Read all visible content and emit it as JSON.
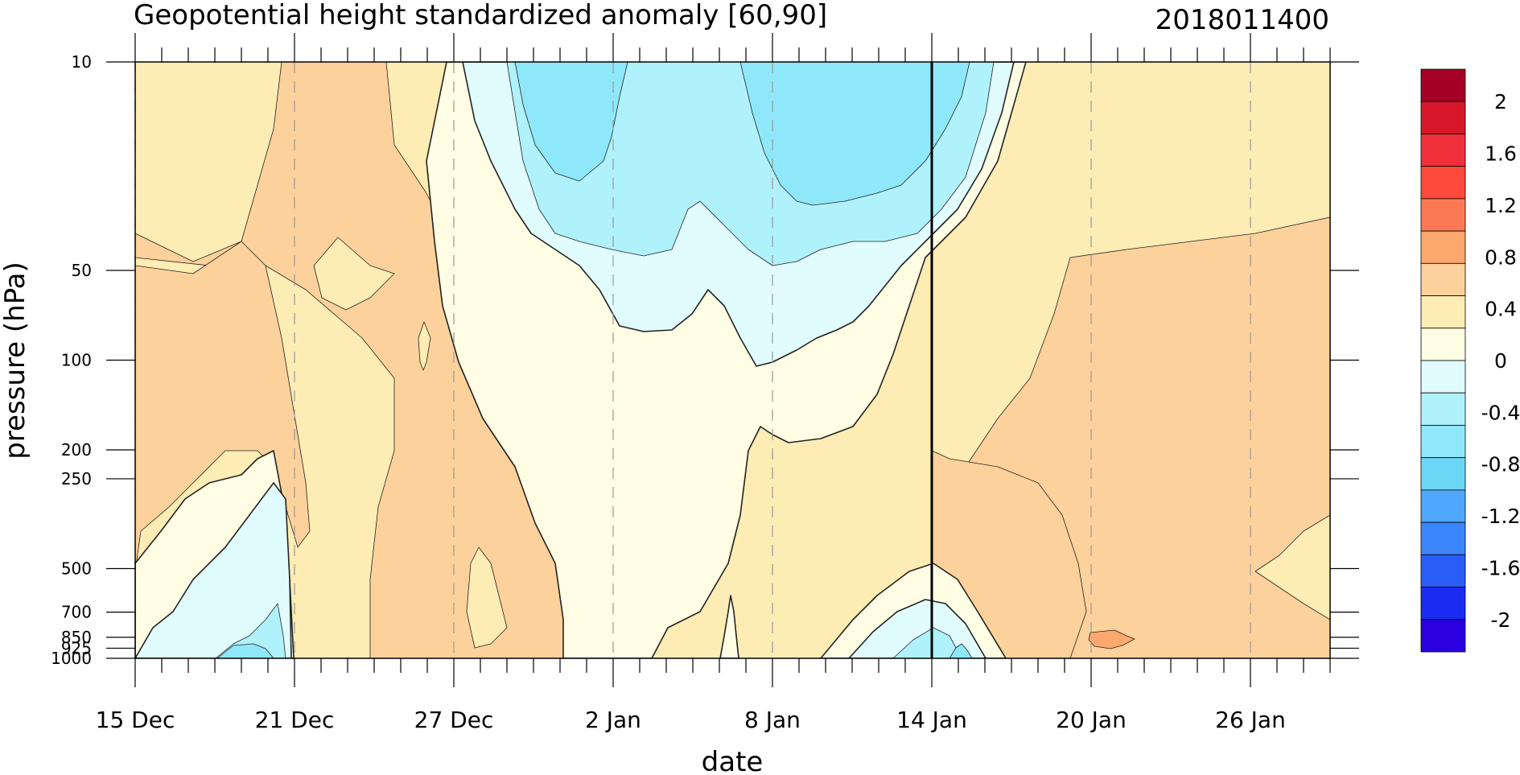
{
  "chart_data": {
    "type": "contour",
    "title": "Geopotential height standardized anomaly [60,90]",
    "subtitle": "2018011400",
    "xlabel": "date",
    "ylabel": "pressure (hPa)",
    "x_tick_labels": [
      "15 Dec",
      "21 Dec",
      "27 Dec",
      "2 Jan",
      "8 Jan",
      "14 Jan",
      "20 Jan",
      "26 Jan"
    ],
    "x_tick_days": [
      0,
      6,
      12,
      18,
      24,
      30,
      36,
      42
    ],
    "x_range_days": [
      0,
      45
    ],
    "y_scale": "log",
    "y_reversed": true,
    "y_range": [
      10,
      1000
    ],
    "y_ticks": [
      10,
      50,
      100,
      200,
      250,
      500,
      700,
      850,
      925,
      1000
    ],
    "y_tick_labels": [
      "10",
      "50",
      "100",
      "200",
      "250",
      "500",
      "700",
      "850",
      "925",
      "1000"
    ],
    "highlight_date": "14 Jan",
    "colorbar": {
      "labels": [
        "2",
        "1.6",
        "1.2",
        "0.8",
        "0.4",
        "0",
        "-0.4",
        "-0.8",
        "-1.2",
        "-1.6",
        "-2"
      ],
      "colors": [
        "#a50026",
        "#d7172a",
        "#f0303a",
        "#fc4a3c",
        "#fb7a55",
        "#fca86e",
        "#fdd19b",
        "#fdecb4",
        "#fffde4",
        "#e0fcff",
        "#b0f2fc",
        "#8fe8fa",
        "#6cd6f7",
        "#4fa8fb",
        "#3a86fa",
        "#2a5cf7",
        "#1a2cf2",
        "#2a00e0"
      ]
    },
    "bands": [
      {
        "level": "0.4",
        "color": "#fdecb4"
      },
      {
        "level": "0.8",
        "color": "#fdd19b"
      },
      {
        "level": "1.2",
        "color": "#fca86e"
      },
      {
        "level": "0",
        "color": "#fffde4"
      },
      {
        "level": "-0.4",
        "color": "#e0fcff"
      },
      {
        "level": "-0.8",
        "color": "#b0f2fc"
      },
      {
        "level": "-1.2",
        "color": "#8fe8fa"
      }
    ]
  }
}
